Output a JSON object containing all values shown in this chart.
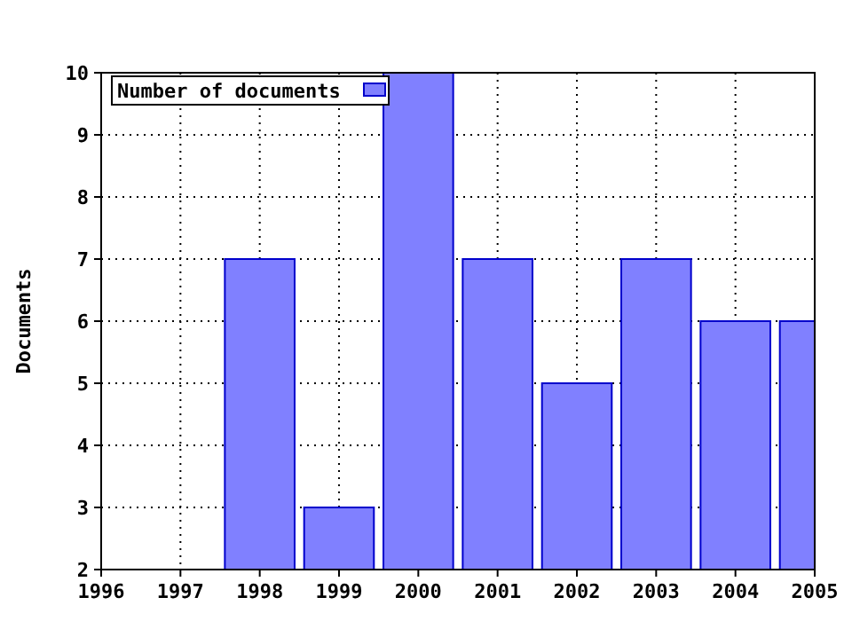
{
  "chart_data": {
    "type": "bar",
    "ylabel": "Documents",
    "x": [
      1998,
      1999,
      2000,
      2001,
      2002,
      2003,
      2004,
      2005
    ],
    "series": [
      {
        "name": "Number of documents",
        "color": "#8080ff",
        "values": [
          7,
          3,
          10,
          7,
          5,
          7,
          6,
          6
        ]
      }
    ],
    "xlim": [
      1996,
      2005
    ],
    "xticks": [
      1996,
      1997,
      1998,
      1999,
      2000,
      2001,
      2002,
      2003,
      2004,
      2005
    ],
    "ylim": [
      2,
      10
    ],
    "yticks": [
      2,
      3,
      4,
      5,
      6,
      7,
      8,
      9,
      10
    ],
    "grid": true,
    "legend": "top left"
  }
}
